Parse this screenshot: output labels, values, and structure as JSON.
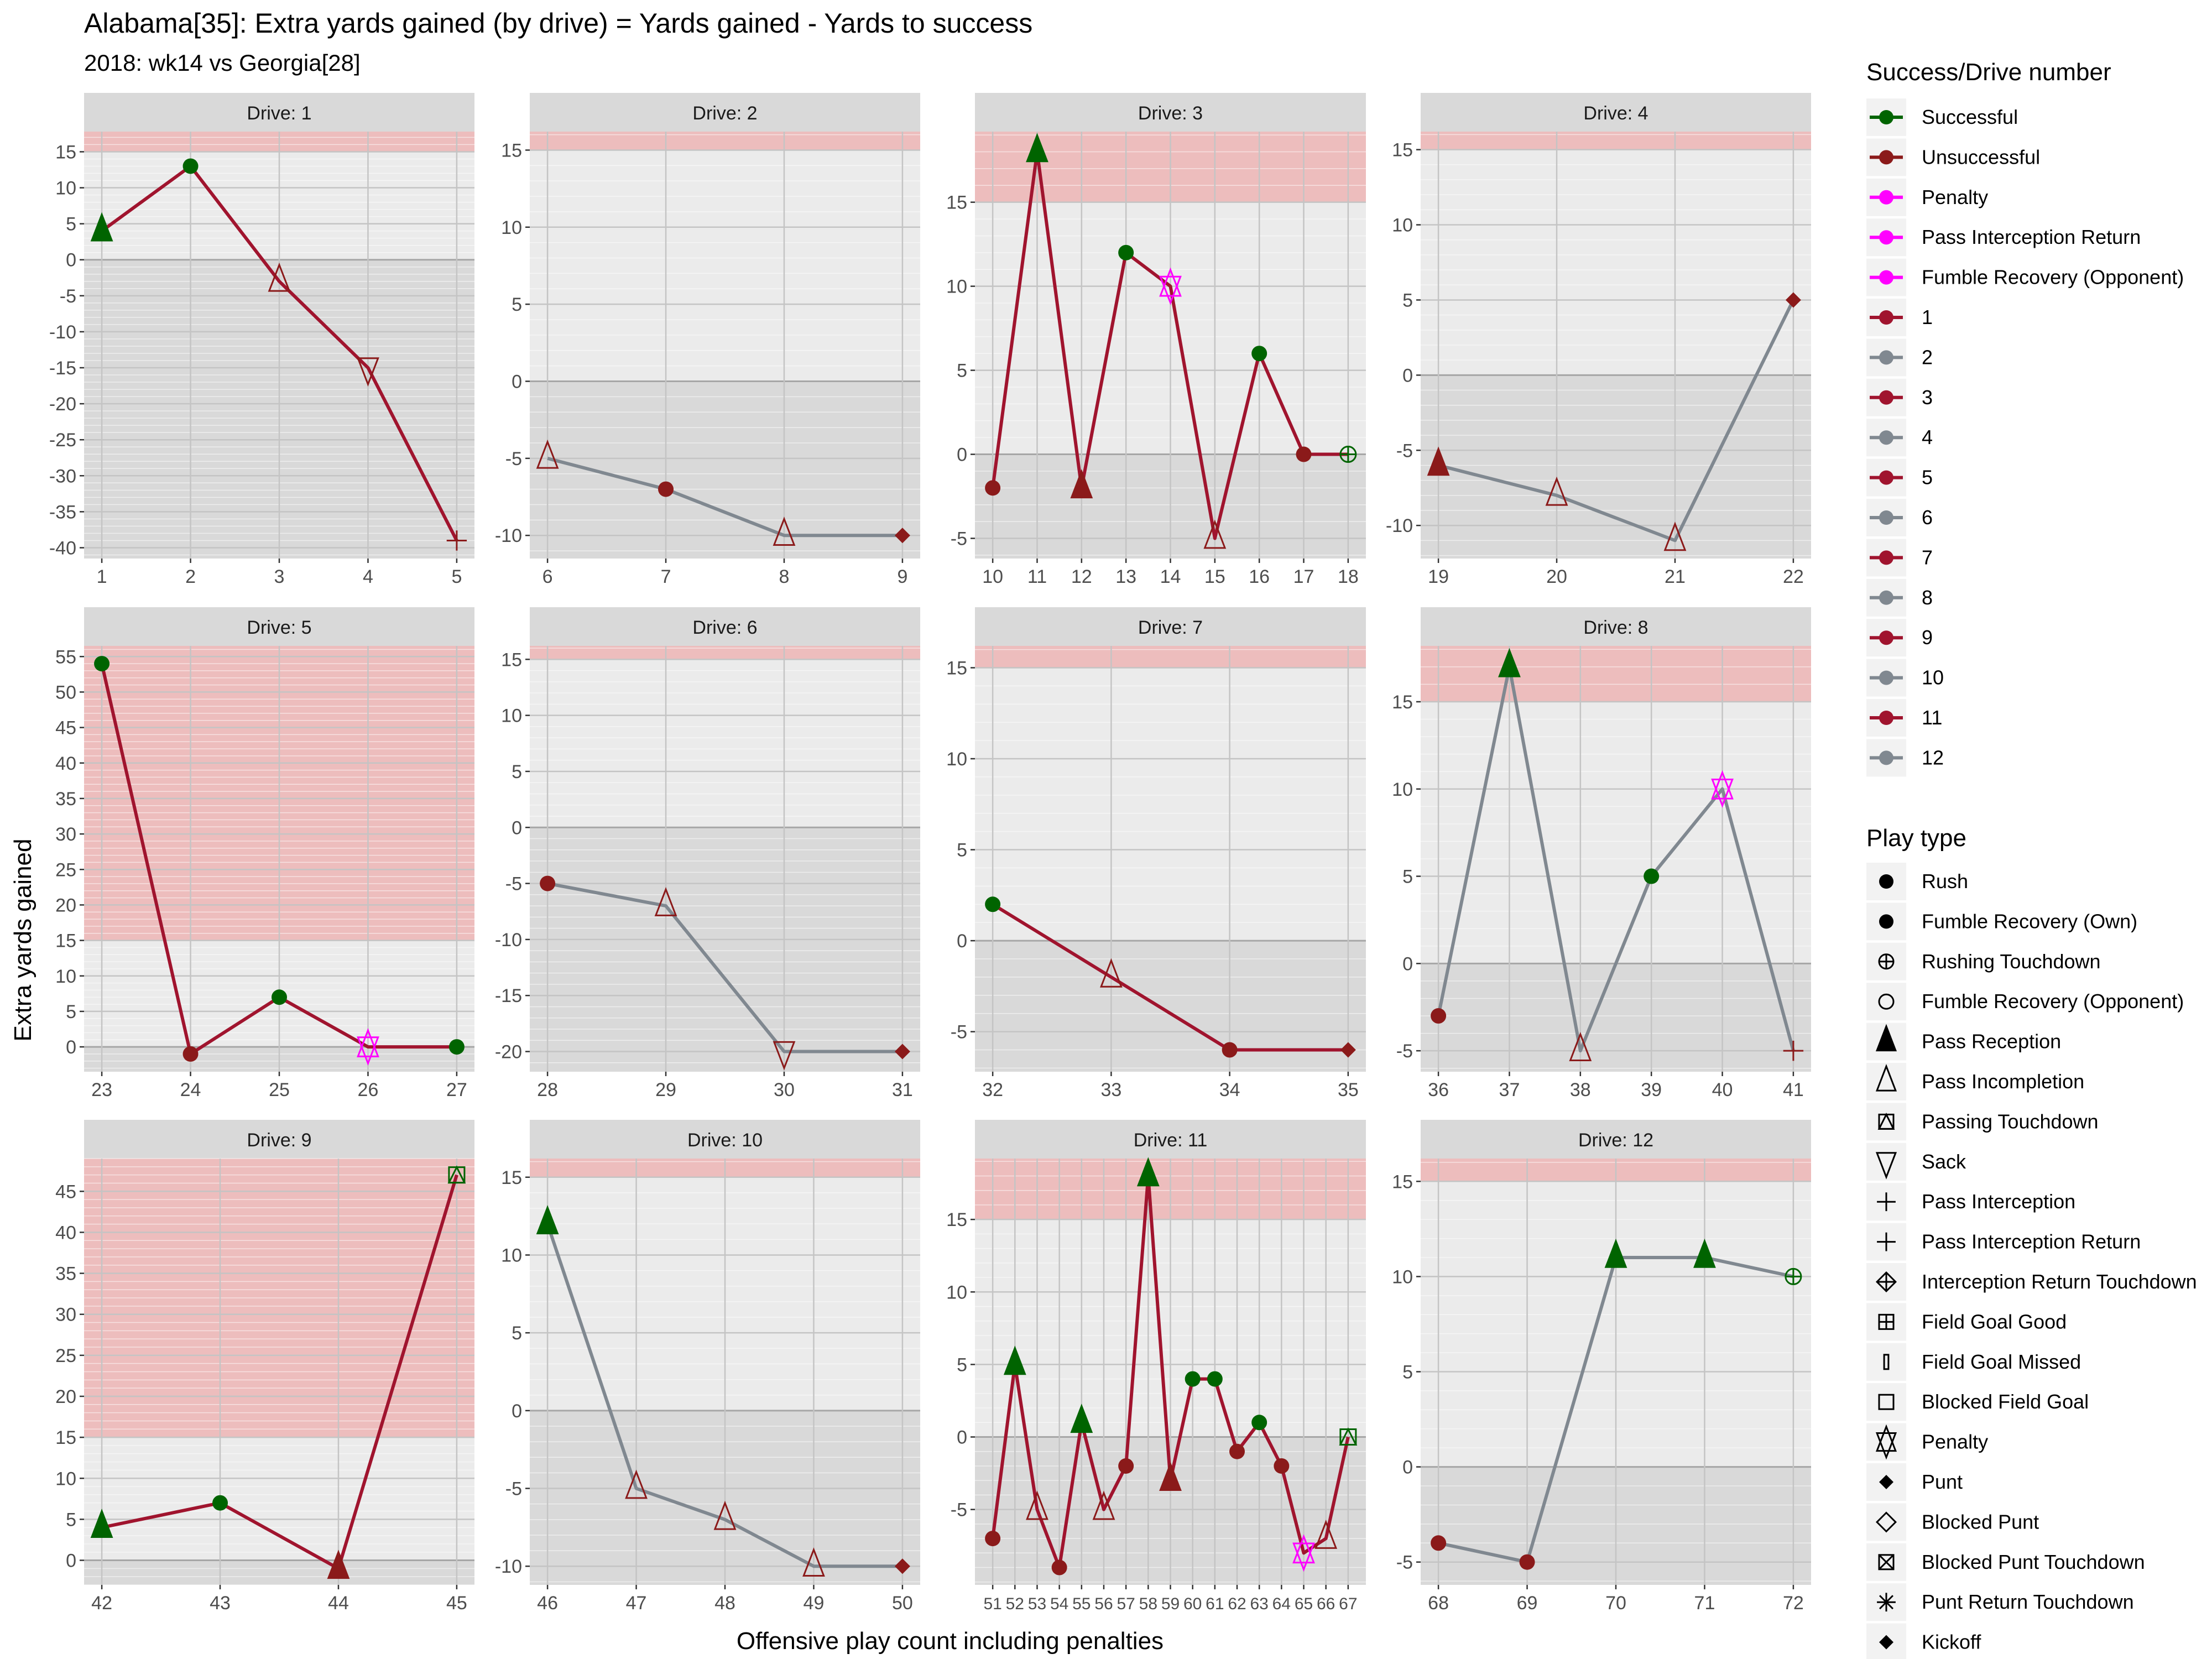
{
  "title": "Alabama[35]: Extra yards gained (by drive) = Yards gained - Yards to success",
  "subtitle": "2018: wk14 vs Georgia[28]",
  "xlabel": "Offensive play count including penalties",
  "ylabel": "Extra yards gained",
  "colors": {
    "successful": "#006400",
    "unsuccessful": "#8B1A1A",
    "penalty": "#FF00FF",
    "drive_odd": "#A0142E",
    "drive_even": "#808890",
    "panel_bg": "#EBEBEB",
    "negative_bg": "#D9D9D9",
    "band": "#EDBDBD",
    "strip": "#D9D9D9"
  },
  "legend_success": {
    "title": "Success/Drive number",
    "items": [
      {
        "label": "Successful",
        "color": "#006400"
      },
      {
        "label": "Unsuccessful",
        "color": "#8B1A1A"
      },
      {
        "label": "Penalty",
        "color": "#FF00FF"
      },
      {
        "label": "Pass Interception Return",
        "color": "#FF00FF"
      },
      {
        "label": "Fumble Recovery (Opponent)",
        "color": "#FF00FF"
      },
      {
        "label": "1",
        "color": "#A0142E"
      },
      {
        "label": "2",
        "color": "#808890"
      },
      {
        "label": "3",
        "color": "#A0142E"
      },
      {
        "label": "4",
        "color": "#808890"
      },
      {
        "label": "5",
        "color": "#A0142E"
      },
      {
        "label": "6",
        "color": "#808890"
      },
      {
        "label": "7",
        "color": "#A0142E"
      },
      {
        "label": "8",
        "color": "#808890"
      },
      {
        "label": "9",
        "color": "#A0142E"
      },
      {
        "label": "10",
        "color": "#808890"
      },
      {
        "label": "11",
        "color": "#A0142E"
      },
      {
        "label": "12",
        "color": "#808890"
      }
    ]
  },
  "legend_playtype": {
    "title": "Play type",
    "items": [
      {
        "label": "Rush",
        "shape": "dot"
      },
      {
        "label": "Fumble Recovery (Own)",
        "shape": "dot"
      },
      {
        "label": "Rushing Touchdown",
        "shape": "circle-plus"
      },
      {
        "label": "Fumble Recovery (Opponent)",
        "shape": "circle"
      },
      {
        "label": "Pass Reception",
        "shape": "triangle-filled"
      },
      {
        "label": "Pass Incompletion",
        "shape": "triangle"
      },
      {
        "label": "Passing Touchdown",
        "shape": "square-triangle"
      },
      {
        "label": "Sack",
        "shape": "triangle-down"
      },
      {
        "label": "Pass Interception",
        "shape": "plus"
      },
      {
        "label": "Pass Interception Return",
        "shape": "plus"
      },
      {
        "label": "Interception Return Touchdown",
        "shape": "diamond-plus"
      },
      {
        "label": "Field Goal Good",
        "shape": "square-plus"
      },
      {
        "label": "Field Goal Missed",
        "shape": "bar"
      },
      {
        "label": "Blocked Field Goal",
        "shape": "square"
      },
      {
        "label": "Penalty",
        "shape": "star-of-david"
      },
      {
        "label": "Punt",
        "shape": "diamond-filled"
      },
      {
        "label": "Blocked Punt",
        "shape": "diamond"
      },
      {
        "label": "Blocked Punt Touchdown",
        "shape": "square-x"
      },
      {
        "label": "Punt Return Touchdown",
        "shape": "asterisk"
      },
      {
        "label": "Kickoff",
        "shape": "diamond-filled"
      }
    ]
  },
  "chart_data": {
    "type": "line",
    "facets": [
      {
        "label": "Drive: 1",
        "drive": 1,
        "xlim": [
          0.8,
          5.2
        ],
        "ylim": [
          -41.5,
          17.8
        ],
        "yticks": [
          -40,
          -35,
          -30,
          -25,
          -20,
          -15,
          -10,
          -5,
          0,
          5,
          10,
          15
        ],
        "xticks": [
          1,
          2,
          3,
          4,
          5
        ],
        "band": [
          15,
          17.8
        ],
        "points": [
          {
            "x": 1,
            "y": 4,
            "shape": "triangle-filled",
            "status": "successful"
          },
          {
            "x": 2,
            "y": 13,
            "shape": "dot",
            "status": "successful"
          },
          {
            "x": 3,
            "y": -3,
            "shape": "triangle",
            "status": "unsuccessful"
          },
          {
            "x": 4,
            "y": -15,
            "shape": "triangle-down",
            "status": "unsuccessful"
          },
          {
            "x": 5,
            "y": -39,
            "shape": "plus",
            "status": "unsuccessful"
          }
        ]
      },
      {
        "label": "Drive: 2",
        "drive": 2,
        "xlim": [
          5.85,
          9.15
        ],
        "ylim": [
          -11.5,
          16.2
        ],
        "yticks": [
          -10,
          -5,
          0,
          5,
          10,
          15
        ],
        "xticks": [
          6,
          7,
          8,
          9
        ],
        "band": [
          15,
          16.2
        ],
        "points": [
          {
            "x": 6,
            "y": -5,
            "shape": "triangle",
            "status": "unsuccessful"
          },
          {
            "x": 7,
            "y": -7,
            "shape": "dot",
            "status": "unsuccessful"
          },
          {
            "x": 8,
            "y": -10,
            "shape": "triangle",
            "status": "unsuccessful"
          },
          {
            "x": 9,
            "y": -10,
            "shape": "diamond-filled",
            "status": "unsuccessful"
          }
        ]
      },
      {
        "label": "Drive: 3",
        "drive": 3,
        "xlim": [
          9.6,
          18.4
        ],
        "ylim": [
          -6.2,
          19.2
        ],
        "yticks": [
          -5,
          0,
          5,
          10,
          15
        ],
        "xticks": [
          10,
          11,
          12,
          13,
          14,
          15,
          16,
          17,
          18
        ],
        "band": [
          15,
          19.2
        ],
        "points": [
          {
            "x": 10,
            "y": -2,
            "shape": "dot",
            "status": "unsuccessful"
          },
          {
            "x": 11,
            "y": 18,
            "shape": "triangle-filled",
            "status": "successful"
          },
          {
            "x": 12,
            "y": -2,
            "shape": "triangle-filled",
            "status": "unsuccessful"
          },
          {
            "x": 13,
            "y": 12,
            "shape": "dot",
            "status": "successful"
          },
          {
            "x": 14,
            "y": 10,
            "shape": "star-of-david",
            "status": "penalty"
          },
          {
            "x": 15,
            "y": -5,
            "shape": "triangle",
            "status": "unsuccessful"
          },
          {
            "x": 16,
            "y": 6,
            "shape": "dot",
            "status": "successful"
          },
          {
            "x": 17,
            "y": 0,
            "shape": "dot",
            "status": "unsuccessful"
          },
          {
            "x": 18,
            "y": 0,
            "shape": "circle-plus",
            "status": "successful"
          }
        ]
      },
      {
        "label": "Drive: 4",
        "drive": 4,
        "xlim": [
          18.85,
          22.15
        ],
        "ylim": [
          -12.2,
          16.2
        ],
        "yticks": [
          -10,
          -5,
          0,
          5,
          10,
          15
        ],
        "xticks": [
          19,
          20,
          21,
          22
        ],
        "band": [
          15,
          16.2
        ],
        "points": [
          {
            "x": 19,
            "y": -6,
            "shape": "triangle-filled",
            "status": "unsuccessful"
          },
          {
            "x": 20,
            "y": -8,
            "shape": "triangle",
            "status": "unsuccessful"
          },
          {
            "x": 21,
            "y": -11,
            "shape": "triangle",
            "status": "unsuccessful"
          },
          {
            "x": 22,
            "y": 5,
            "shape": "diamond-filled",
            "status": "unsuccessful"
          }
        ]
      },
      {
        "label": "Drive: 5",
        "drive": 5,
        "xlim": [
          22.8,
          27.2
        ],
        "ylim": [
          -3.5,
          56.5
        ],
        "yticks": [
          0,
          5,
          10,
          15,
          20,
          25,
          30,
          35,
          40,
          45,
          50,
          55
        ],
        "xticks": [
          23,
          24,
          25,
          26,
          27
        ],
        "band": [
          15,
          56.5
        ],
        "points": [
          {
            "x": 23,
            "y": 54,
            "shape": "dot",
            "status": "successful"
          },
          {
            "x": 24,
            "y": -1,
            "shape": "dot",
            "status": "unsuccessful"
          },
          {
            "x": 25,
            "y": 7,
            "shape": "dot",
            "status": "successful"
          },
          {
            "x": 26,
            "y": 0,
            "shape": "star-of-david",
            "status": "penalty"
          },
          {
            "x": 27,
            "y": 0,
            "shape": "dot",
            "status": "successful"
          }
        ]
      },
      {
        "label": "Drive: 6",
        "drive": 6,
        "xlim": [
          27.85,
          31.15
        ],
        "ylim": [
          -21.8,
          16.2
        ],
        "yticks": [
          -20,
          -15,
          -10,
          -5,
          0,
          5,
          10,
          15
        ],
        "xticks": [
          28,
          29,
          30,
          31
        ],
        "band": [
          15,
          16.2
        ],
        "points": [
          {
            "x": 28,
            "y": -5,
            "shape": "dot",
            "status": "unsuccessful"
          },
          {
            "x": 29,
            "y": -7,
            "shape": "triangle",
            "status": "unsuccessful"
          },
          {
            "x": 30,
            "y": -20,
            "shape": "triangle-down",
            "status": "unsuccessful"
          },
          {
            "x": 31,
            "y": -20,
            "shape": "diamond-filled",
            "status": "unsuccessful"
          }
        ]
      },
      {
        "label": "Drive: 7",
        "drive": 7,
        "xlim": [
          31.85,
          35.15
        ],
        "ylim": [
          -7.2,
          16.2
        ],
        "yticks": [
          -5,
          0,
          5,
          10,
          15
        ],
        "xticks": [
          32,
          33,
          34,
          35
        ],
        "band": [
          15,
          16.2
        ],
        "points": [
          {
            "x": 32,
            "y": 2,
            "shape": "dot",
            "status": "successful"
          },
          {
            "x": 33,
            "y": -2,
            "shape": "triangle",
            "status": "unsuccessful"
          },
          {
            "x": 34,
            "y": -6,
            "shape": "dot",
            "status": "unsuccessful"
          },
          {
            "x": 35,
            "y": -6,
            "shape": "diamond-filled",
            "status": "unsuccessful"
          }
        ]
      },
      {
        "label": "Drive: 8",
        "drive": 8,
        "xlim": [
          35.75,
          41.25
        ],
        "ylim": [
          -6.2,
          18.2
        ],
        "yticks": [
          -5,
          0,
          5,
          10,
          15
        ],
        "xticks": [
          36,
          37,
          38,
          39,
          40,
          41
        ],
        "band": [
          15,
          18.2
        ],
        "points": [
          {
            "x": 36,
            "y": -3,
            "shape": "dot",
            "status": "unsuccessful"
          },
          {
            "x": 37,
            "y": 17,
            "shape": "triangle-filled",
            "status": "successful"
          },
          {
            "x": 38,
            "y": -5,
            "shape": "triangle",
            "status": "unsuccessful"
          },
          {
            "x": 39,
            "y": 5,
            "shape": "dot",
            "status": "successful"
          },
          {
            "x": 40,
            "y": 10,
            "shape": "star-of-david",
            "status": "penalty"
          },
          {
            "x": 41,
            "y": -5,
            "shape": "plus",
            "status": "unsuccessful"
          }
        ]
      },
      {
        "label": "Drive: 9",
        "drive": 9,
        "xlim": [
          41.85,
          45.15
        ],
        "ylim": [
          -3.0,
          49.0
        ],
        "yticks": [
          0,
          5,
          10,
          15,
          20,
          25,
          30,
          35,
          40,
          45
        ],
        "xticks": [
          42,
          43,
          44,
          45
        ],
        "band": [
          15,
          49.0
        ],
        "points": [
          {
            "x": 42,
            "y": 4,
            "shape": "triangle-filled",
            "status": "successful"
          },
          {
            "x": 43,
            "y": 7,
            "shape": "dot",
            "status": "successful"
          },
          {
            "x": 44,
            "y": -1,
            "shape": "triangle-filled",
            "status": "unsuccessful"
          },
          {
            "x": 45,
            "y": 47,
            "shape": "square-triangle",
            "status": "successful"
          }
        ]
      },
      {
        "label": "Drive: 10",
        "drive": 10,
        "xlim": [
          45.8,
          50.2
        ],
        "ylim": [
          -11.2,
          16.2
        ],
        "yticks": [
          -10,
          -5,
          0,
          5,
          10,
          15
        ],
        "xticks": [
          46,
          47,
          48,
          49,
          50
        ],
        "band": [
          15,
          16.2
        ],
        "points": [
          {
            "x": 46,
            "y": 12,
            "shape": "triangle-filled",
            "status": "successful"
          },
          {
            "x": 47,
            "y": -5,
            "shape": "triangle",
            "status": "unsuccessful"
          },
          {
            "x": 48,
            "y": -7,
            "shape": "triangle",
            "status": "unsuccessful"
          },
          {
            "x": 49,
            "y": -10,
            "shape": "triangle",
            "status": "unsuccessful"
          },
          {
            "x": 50,
            "y": -10,
            "shape": "diamond-filled",
            "status": "unsuccessful"
          }
        ]
      },
      {
        "label": "Drive: 11",
        "drive": 11,
        "xlim": [
          50.2,
          67.8
        ],
        "ylim": [
          -10.2,
          19.2
        ],
        "yticks": [
          -5,
          0,
          5,
          10,
          15
        ],
        "xticks": [
          51,
          52,
          53,
          54,
          55,
          56,
          57,
          58,
          59,
          60,
          61,
          62,
          63,
          64,
          65,
          66,
          67
        ],
        "tick_labels": [
          "51525354555657585960616263646566 67"
        ],
        "band": [
          15,
          19.2
        ],
        "points": [
          {
            "x": 51,
            "y": -7,
            "shape": "dot",
            "status": "unsuccessful"
          },
          {
            "x": 52,
            "y": 5,
            "shape": "triangle-filled",
            "status": "successful"
          },
          {
            "x": 53,
            "y": -5,
            "shape": "triangle",
            "status": "unsuccessful"
          },
          {
            "x": 54,
            "y": -9,
            "shape": "dot",
            "status": "unsuccessful"
          },
          {
            "x": 55,
            "y": 1,
            "shape": "triangle-filled",
            "status": "successful"
          },
          {
            "x": 56,
            "y": -5,
            "shape": "triangle",
            "status": "unsuccessful"
          },
          {
            "x": 57,
            "y": -2,
            "shape": "dot",
            "status": "unsuccessful"
          },
          {
            "x": 58,
            "y": 18,
            "shape": "triangle-filled",
            "status": "successful"
          },
          {
            "x": 59,
            "y": -3,
            "shape": "triangle-filled",
            "status": "unsuccessful"
          },
          {
            "x": 60,
            "y": 4,
            "shape": "dot",
            "status": "successful"
          },
          {
            "x": 61,
            "y": 4,
            "shape": "dot",
            "status": "successful"
          },
          {
            "x": 62,
            "y": -1,
            "shape": "dot",
            "status": "unsuccessful"
          },
          {
            "x": 63,
            "y": 1,
            "shape": "dot",
            "status": "successful"
          },
          {
            "x": 64,
            "y": -2,
            "shape": "dot",
            "status": "unsuccessful"
          },
          {
            "x": 65,
            "y": -8,
            "shape": "star-of-david",
            "status": "penalty"
          },
          {
            "x": 66,
            "y": -7,
            "shape": "triangle",
            "status": "unsuccessful"
          },
          {
            "x": 67,
            "y": 0,
            "shape": "square-triangle",
            "status": "successful"
          }
        ]
      },
      {
        "label": "Drive: 12",
        "drive": 12,
        "xlim": [
          67.8,
          72.2
        ],
        "ylim": [
          -6.2,
          16.2
        ],
        "yticks": [
          -5,
          0,
          5,
          10,
          15
        ],
        "xticks": [
          68,
          69,
          70,
          71,
          72
        ],
        "band": [
          15,
          16.2
        ],
        "points": [
          {
            "x": 68,
            "y": -4,
            "shape": "dot",
            "status": "unsuccessful"
          },
          {
            "x": 69,
            "y": -5,
            "shape": "dot",
            "status": "unsuccessful"
          },
          {
            "x": 70,
            "y": 11,
            "shape": "triangle-filled",
            "status": "successful"
          },
          {
            "x": 71,
            "y": 11,
            "shape": "triangle-filled",
            "status": "successful"
          },
          {
            "x": 72,
            "y": 10,
            "shape": "circle-plus",
            "status": "successful"
          }
        ]
      }
    ]
  }
}
